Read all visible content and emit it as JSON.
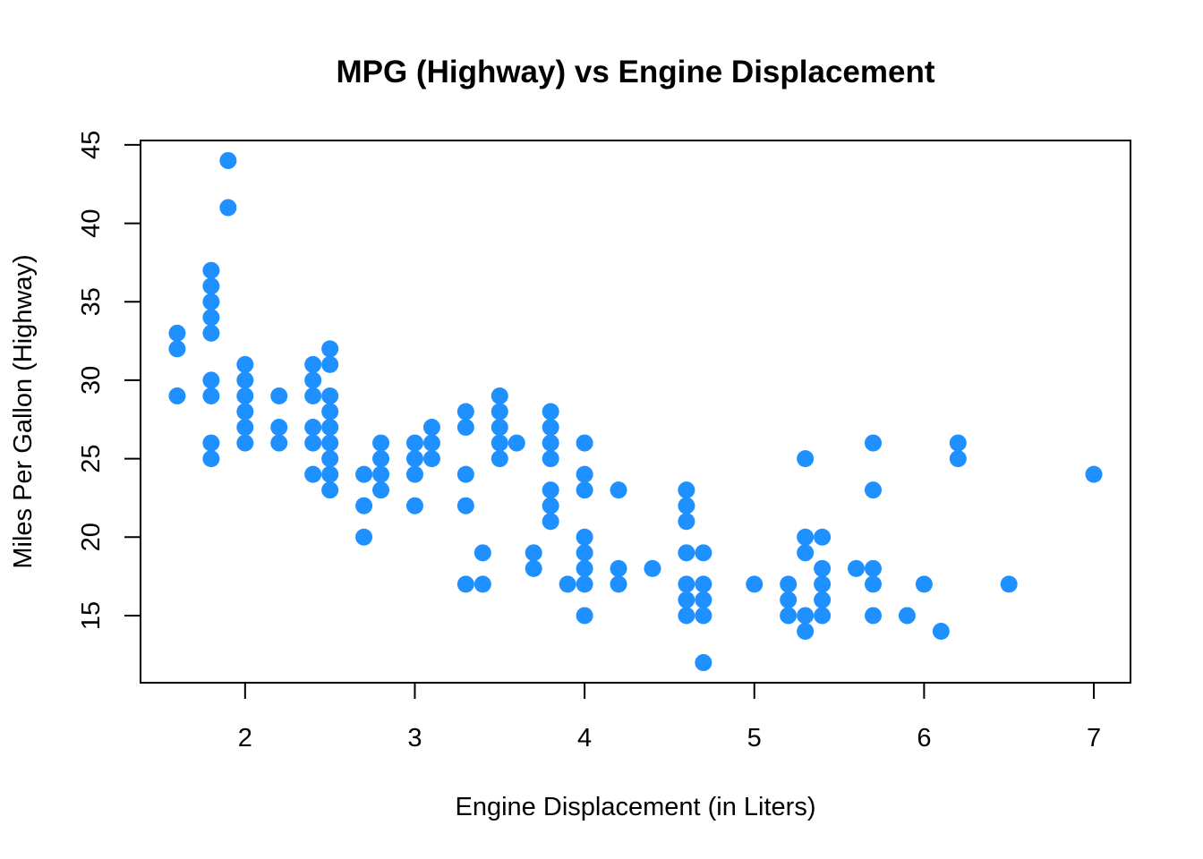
{
  "chart_data": {
    "type": "scatter",
    "title": "MPG (Highway) vs Engine Displacement",
    "xlabel": "Engine Displacement (in Liters)",
    "ylabel": "Miles Per Gallon (Highway)",
    "xlim": [
      1.6,
      7.0
    ],
    "ylim": [
      12,
      44
    ],
    "xticks": [
      2,
      3,
      4,
      5,
      6,
      7
    ],
    "yticks": [
      15,
      20,
      25,
      30,
      35,
      40,
      45
    ],
    "point_color": "#1E90FF",
    "grid": false,
    "legend": "none",
    "points": [
      [
        1.6,
        33
      ],
      [
        1.6,
        32
      ],
      [
        1.6,
        29
      ],
      [
        1.8,
        37
      ],
      [
        1.8,
        36
      ],
      [
        1.8,
        35
      ],
      [
        1.8,
        34
      ],
      [
        1.8,
        33
      ],
      [
        1.8,
        30
      ],
      [
        1.8,
        29
      ],
      [
        1.8,
        26
      ],
      [
        1.8,
        25
      ],
      [
        1.9,
        44
      ],
      [
        1.9,
        41
      ],
      [
        2.0,
        31
      ],
      [
        2.0,
        30
      ],
      [
        2.0,
        29
      ],
      [
        2.0,
        28
      ],
      [
        2.0,
        27
      ],
      [
        2.0,
        26
      ],
      [
        2.2,
        29
      ],
      [
        2.2,
        27
      ],
      [
        2.2,
        26
      ],
      [
        2.4,
        31
      ],
      [
        2.4,
        30
      ],
      [
        2.4,
        29
      ],
      [
        2.4,
        27
      ],
      [
        2.4,
        26
      ],
      [
        2.4,
        24
      ],
      [
        2.5,
        32
      ],
      [
        2.5,
        31
      ],
      [
        2.5,
        29
      ],
      [
        2.5,
        28
      ],
      [
        2.5,
        27
      ],
      [
        2.5,
        26
      ],
      [
        2.5,
        25
      ],
      [
        2.5,
        24
      ],
      [
        2.5,
        23
      ],
      [
        2.7,
        24
      ],
      [
        2.7,
        22
      ],
      [
        2.7,
        20
      ],
      [
        2.8,
        26
      ],
      [
        2.8,
        25
      ],
      [
        2.8,
        24
      ],
      [
        2.8,
        23
      ],
      [
        3.0,
        26
      ],
      [
        3.0,
        25
      ],
      [
        3.0,
        24
      ],
      [
        3.0,
        22
      ],
      [
        3.1,
        27
      ],
      [
        3.1,
        26
      ],
      [
        3.1,
        25
      ],
      [
        3.3,
        28
      ],
      [
        3.3,
        27
      ],
      [
        3.3,
        24
      ],
      [
        3.3,
        22
      ],
      [
        3.3,
        17
      ],
      [
        3.4,
        19
      ],
      [
        3.4,
        17
      ],
      [
        3.5,
        29
      ],
      [
        3.5,
        28
      ],
      [
        3.5,
        27
      ],
      [
        3.5,
        26
      ],
      [
        3.5,
        25
      ],
      [
        3.6,
        26
      ],
      [
        3.7,
        19
      ],
      [
        3.7,
        18
      ],
      [
        3.8,
        28
      ],
      [
        3.8,
        27
      ],
      [
        3.8,
        26
      ],
      [
        3.8,
        25
      ],
      [
        3.8,
        23
      ],
      [
        3.8,
        22
      ],
      [
        3.8,
        21
      ],
      [
        3.9,
        17
      ],
      [
        4.0,
        26
      ],
      [
        4.0,
        24
      ],
      [
        4.0,
        23
      ],
      [
        4.0,
        20
      ],
      [
        4.0,
        19
      ],
      [
        4.0,
        18
      ],
      [
        4.0,
        17
      ],
      [
        4.0,
        15
      ],
      [
        4.2,
        23
      ],
      [
        4.2,
        18
      ],
      [
        4.2,
        17
      ],
      [
        4.4,
        18
      ],
      [
        4.6,
        23
      ],
      [
        4.6,
        22
      ],
      [
        4.6,
        21
      ],
      [
        4.6,
        19
      ],
      [
        4.6,
        17
      ],
      [
        4.6,
        16
      ],
      [
        4.6,
        15
      ],
      [
        4.7,
        19
      ],
      [
        4.7,
        17
      ],
      [
        4.7,
        16
      ],
      [
        4.7,
        15
      ],
      [
        4.7,
        12
      ],
      [
        5.0,
        17
      ],
      [
        5.2,
        17
      ],
      [
        5.2,
        16
      ],
      [
        5.2,
        15
      ],
      [
        5.3,
        25
      ],
      [
        5.3,
        20
      ],
      [
        5.3,
        19
      ],
      [
        5.3,
        15
      ],
      [
        5.3,
        14
      ],
      [
        5.4,
        20
      ],
      [
        5.4,
        18
      ],
      [
        5.4,
        17
      ],
      [
        5.4,
        16
      ],
      [
        5.4,
        15
      ],
      [
        5.6,
        18
      ],
      [
        5.7,
        26
      ],
      [
        5.7,
        23
      ],
      [
        5.7,
        18
      ],
      [
        5.7,
        17
      ],
      [
        5.7,
        15
      ],
      [
        5.9,
        15
      ],
      [
        6.0,
        17
      ],
      [
        6.1,
        14
      ],
      [
        6.2,
        26
      ],
      [
        6.2,
        25
      ],
      [
        6.5,
        17
      ],
      [
        7.0,
        24
      ]
    ]
  }
}
